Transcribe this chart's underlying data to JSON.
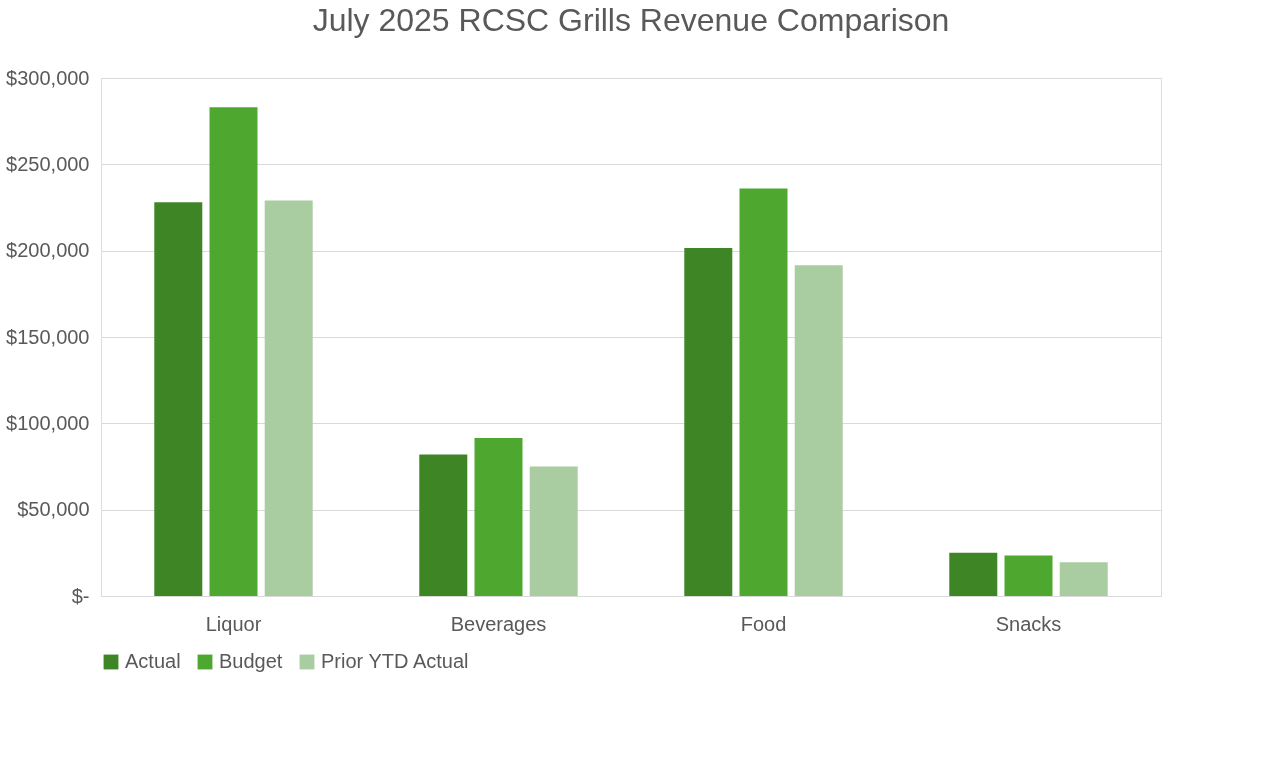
{
  "chart_data": {
    "type": "bar",
    "title": "July 2025 RCSC Grills Revenue Comparison",
    "categories": [
      "Liquor",
      "Beverages",
      "Food",
      "Snacks"
    ],
    "series": [
      {
        "name": "Actual",
        "color": "#3e8526",
        "values": [
          228000,
          82000,
          201500,
          25000
        ]
      },
      {
        "name": "Budget",
        "color": "#4ea72e",
        "values": [
          283000,
          91500,
          236000,
          23500
        ]
      },
      {
        "name": "Prior YTD Actual",
        "color": "#a9cca0",
        "values": [
          229000,
          75000,
          191500,
          19500
        ]
      }
    ],
    "ylim": [
      0,
      300000
    ],
    "yticks": [
      {
        "value": 0,
        "label": "$-"
      },
      {
        "value": 50000,
        "label": "$50,000"
      },
      {
        "value": 100000,
        "label": "$100,000"
      },
      {
        "value": 150000,
        "label": "$150,000"
      },
      {
        "value": 200000,
        "label": "$200,000"
      },
      {
        "value": 250000,
        "label": "$250,000"
      },
      {
        "value": 300000,
        "label": "$300,000"
      }
    ],
    "grid": "y",
    "legend": "bottom"
  }
}
